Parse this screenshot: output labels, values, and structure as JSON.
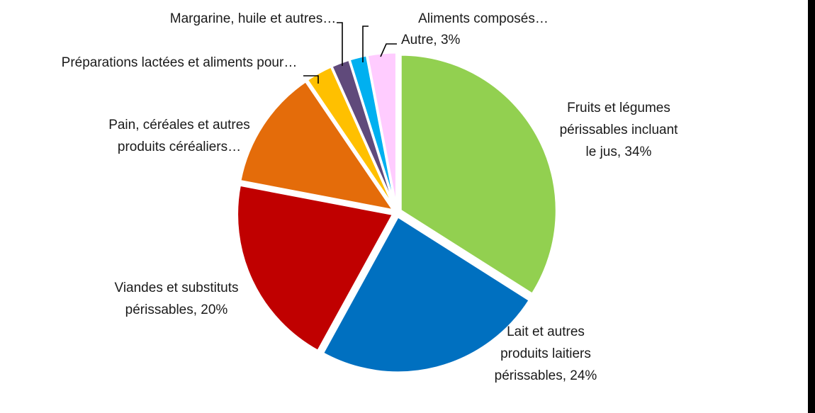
{
  "chart_data": {
    "type": "pie",
    "slices": [
      {
        "label_lines": [
          "Fruits et légumes",
          "périssables incluant",
          "le jus, 34%"
        ],
        "value": 34,
        "color": "#92d050"
      },
      {
        "label_lines": [
          "Lait et autres",
          "produits laitiers",
          "périssables, 24%"
        ],
        "value": 24,
        "color": "#0070c0"
      },
      {
        "label_lines": [
          "Viandes et substituts",
          "périssables, 20%"
        ],
        "value": 20,
        "color": "#c00000"
      },
      {
        "label_lines": [
          "Pain, céréales et autres",
          "produits céréaliers…"
        ],
        "value": 12.5,
        "color": "#e46c0a"
      },
      {
        "label_lines": [
          "Préparations lactées et aliments pour…"
        ],
        "value": 2.8,
        "color": "#ffc000"
      },
      {
        "label_lines": [
          "Margarine, huile et autres…"
        ],
        "value": 1.9,
        "color": "#604a7b"
      },
      {
        "label_lines": [
          "Aliments composés…"
        ],
        "value": 1.8,
        "color": "#00b0f0"
      },
      {
        "label_lines": [
          "Autre, 3%"
        ],
        "value": 3,
        "color": "#ffccff"
      }
    ],
    "start_angle": "12 o'clock",
    "direction": "clockwise",
    "legend": "none"
  }
}
